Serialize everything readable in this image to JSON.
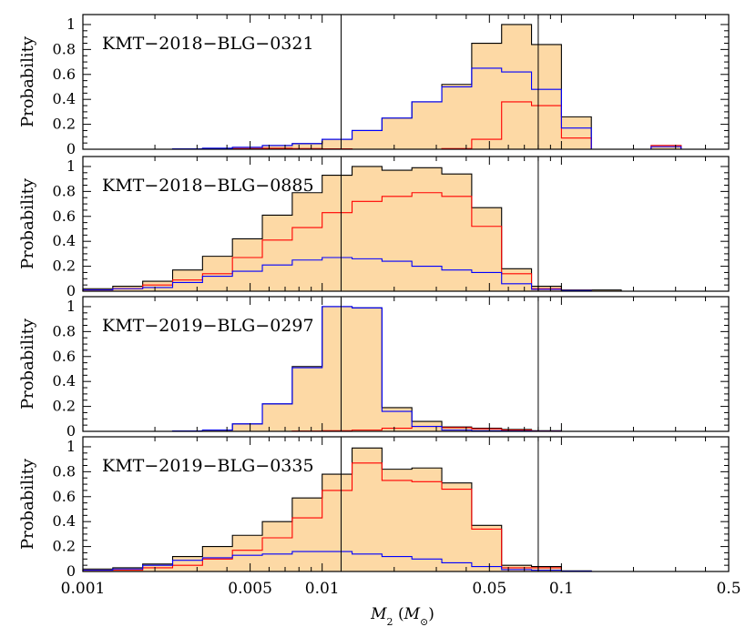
{
  "chart_data": {
    "type": "histogram-panels",
    "x_scale": "log",
    "xlim": [
      0.001,
      0.5
    ],
    "ylim": [
      0,
      1.08
    ],
    "x_tick_values": [
      0.001,
      0.005,
      0.01,
      0.05,
      0.1,
      0.5
    ],
    "x_tick_labels": [
      "0.001",
      "0.005",
      "0.01",
      "0.05",
      "0.1",
      "0.5"
    ],
    "y_tick_values": [
      0,
      0.2,
      0.4,
      0.6,
      0.8,
      1
    ],
    "y_tick_labels": [
      "0",
      "0.2",
      "0.4",
      "0.6",
      "0.8",
      "1"
    ],
    "ylabel": "Probability",
    "xlabel_main": "M",
    "xlabel_sub": "2",
    "xlabel_unit_open": " (",
    "xlabel_unit_main": "M",
    "xlabel_unit_sub": "⊙",
    "xlabel_unit_close": ")",
    "vertical_lines": [
      0.012,
      0.08
    ],
    "bin_edges_log10": [
      -3.0,
      -2.875,
      -2.75,
      -2.625,
      -2.5,
      -2.375,
      -2.25,
      -2.125,
      -2.0,
      -1.875,
      -1.75,
      -1.625,
      -1.5,
      -1.375,
      -1.25,
      -1.125,
      -1.0,
      -0.875,
      -0.75,
      -0.625,
      -0.5,
      -0.375
    ],
    "colors": {
      "total_fill": "#fdd9a5",
      "total_line": "#000000",
      "red": "#ff0000",
      "blue": "#0000ff"
    },
    "panels": [
      {
        "title": "KMT−2018−BLG−0321",
        "total": [
          0,
          0,
          0,
          0.003,
          0.008,
          0.015,
          0.03,
          0.045,
          0.08,
          0.15,
          0.25,
          0.38,
          0.52,
          0.85,
          1.0,
          0.84,
          0.26,
          0,
          0,
          0.03,
          0,
          0
        ],
        "red": [
          0,
          0,
          0,
          0,
          0.003,
          0.005,
          0.008,
          0.005,
          0.003,
          0,
          0,
          0,
          0.005,
          0.08,
          0.38,
          0.35,
          0.09,
          0,
          0,
          0.03,
          0,
          0
        ],
        "blue": [
          0,
          0,
          0,
          0.003,
          0.008,
          0.015,
          0.03,
          0.045,
          0.08,
          0.15,
          0.25,
          0.38,
          0.5,
          0.65,
          0.62,
          0.48,
          0.17,
          0,
          0,
          0.02,
          0,
          0
        ]
      },
      {
        "title": "KMT−2018−BLG−0885",
        "total": [
          0.02,
          0.04,
          0.08,
          0.17,
          0.28,
          0.42,
          0.61,
          0.79,
          0.93,
          1.0,
          0.97,
          0.99,
          0.94,
          0.67,
          0.18,
          0.04,
          0.01,
          0.01,
          0,
          0,
          0,
          0
        ],
        "red": [
          0.01,
          0.02,
          0.05,
          0.09,
          0.14,
          0.27,
          0.41,
          0.51,
          0.63,
          0.72,
          0.76,
          0.79,
          0.76,
          0.52,
          0.14,
          0.02,
          0.005,
          0,
          0,
          0,
          0,
          0
        ],
        "blue": [
          0.01,
          0.02,
          0.03,
          0.07,
          0.12,
          0.16,
          0.21,
          0.25,
          0.27,
          0.26,
          0.24,
          0.2,
          0.17,
          0.15,
          0.06,
          0.015,
          0.005,
          0,
          0,
          0,
          0,
          0
        ]
      },
      {
        "title": "KMT−2019−BLG−0297",
        "total": [
          0,
          0,
          0,
          0.003,
          0.01,
          0.06,
          0.22,
          0.52,
          1.0,
          0.99,
          0.19,
          0.08,
          0.035,
          0.025,
          0.015,
          0.005,
          0,
          0,
          0,
          0,
          0,
          0
        ],
        "red": [
          0,
          0,
          0,
          0,
          0,
          0,
          0,
          0.002,
          0.005,
          0.01,
          0.025,
          0.04,
          0.03,
          0.02,
          0.01,
          0.002,
          0,
          0,
          0,
          0,
          0,
          0
        ],
        "blue": [
          0,
          0,
          0,
          0.003,
          0.01,
          0.06,
          0.22,
          0.51,
          1.0,
          0.99,
          0.16,
          0.04,
          0.01,
          0.005,
          0.003,
          0.001,
          0,
          0,
          0,
          0,
          0,
          0
        ]
      },
      {
        "title": "KMT−2019−BLG−0335",
        "total": [
          0.02,
          0.03,
          0.06,
          0.12,
          0.2,
          0.29,
          0.4,
          0.59,
          0.78,
          0.99,
          0.82,
          0.83,
          0.71,
          0.37,
          0.05,
          0.04,
          0.005,
          0,
          0,
          0,
          0,
          0
        ],
        "red": [
          0.01,
          0.01,
          0.03,
          0.05,
          0.1,
          0.17,
          0.27,
          0.43,
          0.65,
          0.87,
          0.73,
          0.72,
          0.66,
          0.34,
          0.03,
          0.03,
          0.002,
          0,
          0,
          0,
          0,
          0
        ],
        "blue": [
          0.01,
          0.02,
          0.05,
          0.09,
          0.11,
          0.13,
          0.14,
          0.16,
          0.16,
          0.14,
          0.12,
          0.1,
          0.07,
          0.04,
          0.015,
          0.01,
          0.003,
          0,
          0,
          0,
          0,
          0
        ]
      }
    ]
  }
}
